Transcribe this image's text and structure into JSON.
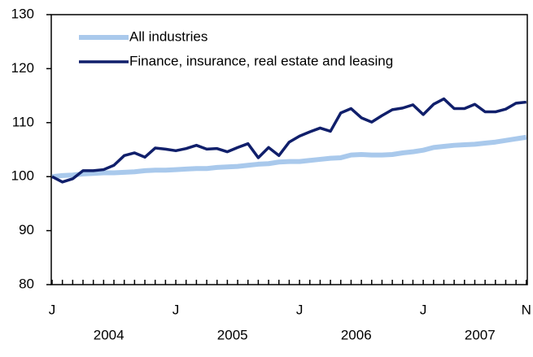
{
  "chart_data": {
    "type": "line",
    "categories": [
      "J",
      null,
      null,
      null,
      null,
      null,
      null,
      null,
      null,
      null,
      null,
      null,
      "J",
      null,
      null,
      null,
      null,
      null,
      null,
      null,
      null,
      null,
      null,
      null,
      "J",
      null,
      null,
      null,
      null,
      null,
      null,
      null,
      null,
      null,
      null,
      null,
      "J",
      null,
      null,
      null,
      null,
      null,
      null,
      null,
      null,
      null,
      "N"
    ],
    "years": [
      "2004",
      "2005",
      "2006",
      "2007"
    ],
    "series": [
      {
        "name": "All industries",
        "color": "#a9c9ec",
        "values": [
          100,
          100.2,
          100.3,
          100.5,
          100.6,
          100.7,
          100.7,
          100.8,
          100.9,
          101.1,
          101.2,
          101.2,
          101.3,
          101.4,
          101.5,
          101.5,
          101.7,
          101.8,
          101.9,
          102.1,
          102.3,
          102.4,
          102.7,
          102.8,
          102.8,
          103.0,
          103.2,
          103.4,
          103.5,
          104.0,
          104.1,
          104.0,
          104.0,
          104.1,
          104.4,
          104.6,
          104.9,
          105.4,
          105.6,
          105.8,
          105.9,
          106.0,
          106.2,
          106.4,
          106.7,
          107.0,
          107.3
        ]
      },
      {
        "name": "Finance, insurance, real estate and leasing",
        "color": "#101f6b",
        "values": [
          100,
          99,
          99.6,
          101.1,
          101.1,
          101.3,
          102.1,
          103.9,
          104.4,
          103.6,
          105.3,
          105.1,
          104.8,
          105.2,
          105.8,
          105.1,
          105.2,
          104.6,
          105.4,
          106.1,
          103.5,
          105.4,
          103.9,
          106.4,
          107.5,
          108.3,
          109.0,
          108.4,
          111.8,
          112.6,
          110.9,
          110.1,
          111.3,
          112.4,
          112.7,
          113.3,
          111.5,
          113.4,
          114.4,
          112.6,
          112.6,
          113.4,
          112.0,
          112.0,
          112.5,
          113.6,
          113.8
        ]
      }
    ],
    "ylim": [
      80,
      130
    ],
    "yticks": [
      80,
      90,
      100,
      110,
      120,
      130
    ],
    "grid": false,
    "legend": "upper-left"
  }
}
